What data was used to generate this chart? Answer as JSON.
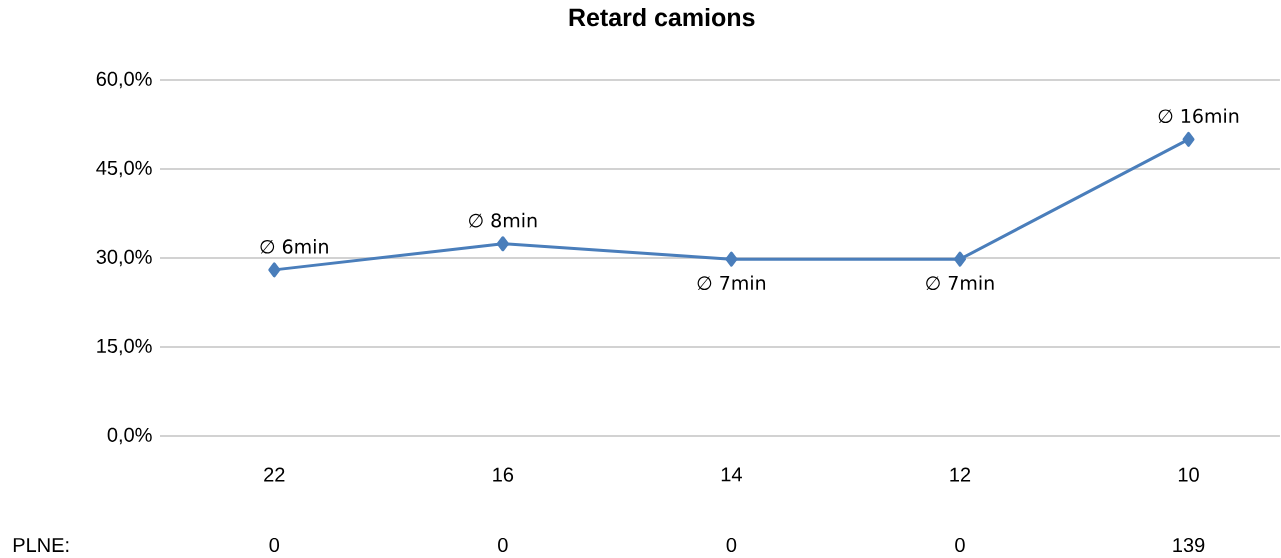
{
  "chart_data": {
    "type": "line",
    "title": "Retard camions",
    "categories": [
      "22",
      "16",
      "14",
      "12",
      "10"
    ],
    "series": [
      {
        "color": "#4a7ebb",
        "values": [
          28.0,
          32.4,
          29.8,
          29.8,
          50.0
        ]
      }
    ],
    "ylim": [
      0,
      60
    ],
    "yticks": [
      {
        "value": 0,
        "label": "0,0%"
      },
      {
        "value": 15,
        "label": "15,0%"
      },
      {
        "value": 30,
        "label": "30,0%"
      },
      {
        "value": 45,
        "label": "45,0%"
      },
      {
        "value": 60,
        "label": "60,0%"
      }
    ],
    "grid": "y",
    "marker": "diamond",
    "line_style": "solid",
    "annotations": [
      {
        "text": "∅ 6min",
        "x": "22",
        "y": 28.0
      },
      {
        "text": "∅ 8min",
        "x": "16",
        "y": 32.4
      },
      {
        "text": "∅ 7min",
        "x": "14",
        "y": 29.8
      },
      {
        "text": "∅ 7min",
        "x": "12",
        "y": 29.8
      },
      {
        "text": "∅ 16min",
        "x": "10",
        "y": 50.0
      },
      "PLNE:",
      "0",
      "0",
      "0",
      "0",
      "139"
    ]
  }
}
